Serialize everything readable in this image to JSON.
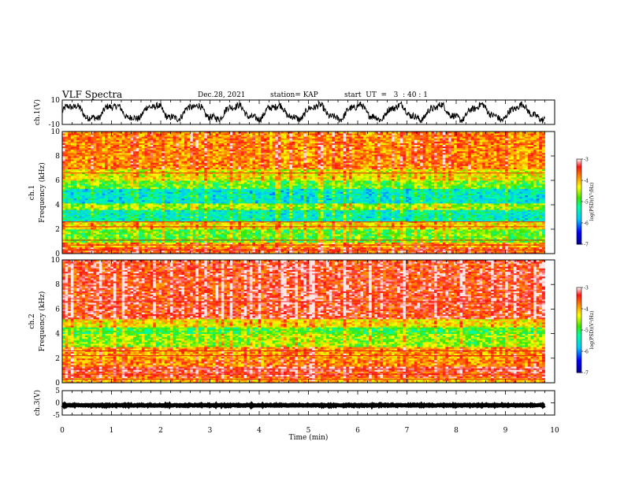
{
  "header": {
    "title": "VLF Spectra",
    "date": "Dec.28, 2021",
    "station": "station= KAP",
    "start_ut": "start  UT  =   3  : 40 : 1"
  },
  "chart_data": [
    {
      "type": "line",
      "panel": "ch1-waveform",
      "ylabel": "ch.1(V)",
      "ylim": [
        -10,
        10
      ],
      "yticks": [
        -10,
        10
      ],
      "xlim": [
        0,
        10
      ],
      "x_extent_min": 9.8,
      "description_of_signal": "oscillating voltage roughly between -8 and 8 V"
    },
    {
      "type": "heatmap",
      "panel": "ch1-spectrogram",
      "ylabel": "ch.1\nFrequency (kHz)",
      "ylim": [
        0,
        10
      ],
      "yticks": [
        0,
        2,
        4,
        6,
        8,
        10
      ],
      "xlim": [
        0,
        10
      ],
      "colorbar": {
        "label": "log(PSD)(V²/Hz)",
        "range": [
          -7,
          -3
        ],
        "ticks": [
          -3,
          -4,
          -5,
          -6,
          -7
        ]
      },
      "bands_log_psd": [
        {
          "f": [
            0.0,
            0.6
          ],
          "value": -3.6
        },
        {
          "f": [
            0.6,
            1.0
          ],
          "value": -4.0
        },
        {
          "f": [
            1.0,
            2.0
          ],
          "value": -4.8
        },
        {
          "f": [
            2.0,
            2.6
          ],
          "value": -4.2
        },
        {
          "f": [
            2.6,
            3.6
          ],
          "value": -5.4
        },
        {
          "f": [
            3.6,
            4.2
          ],
          "value": -4.6
        },
        {
          "f": [
            4.2,
            5.3
          ],
          "value": -5.5
        },
        {
          "f": [
            5.3,
            6.0
          ],
          "value": -4.8
        },
        {
          "f": [
            6.0,
            7.0
          ],
          "value": -4.3
        },
        {
          "f": [
            7.0,
            10.0
          ],
          "value": -3.8
        }
      ]
    },
    {
      "type": "heatmap",
      "panel": "ch2-spectrogram",
      "ylabel": "ch.2\nFrequency (kHz)",
      "ylim": [
        0,
        10
      ],
      "yticks": [
        0,
        2,
        4,
        6,
        8,
        10
      ],
      "xlim": [
        0,
        10
      ],
      "colorbar": {
        "label": "log(PSD)(V²/Hz)",
        "range": [
          -7,
          -3
        ],
        "ticks": [
          -3,
          -4,
          -5,
          -6,
          -7
        ]
      },
      "bands_log_psd": [
        {
          "f": [
            0.0,
            0.4
          ],
          "value": -4.0
        },
        {
          "f": [
            0.4,
            1.0
          ],
          "value": -3.5
        },
        {
          "f": [
            1.0,
            1.4
          ],
          "value": -3.3
        },
        {
          "f": [
            1.4,
            2.0
          ],
          "value": -3.8
        },
        {
          "f": [
            2.0,
            3.0
          ],
          "value": -3.9
        },
        {
          "f": [
            3.0,
            4.0
          ],
          "value": -4.6
        },
        {
          "f": [
            4.0,
            4.5
          ],
          "value": -4.9
        },
        {
          "f": [
            4.5,
            5.2
          ],
          "value": -4.2
        },
        {
          "f": [
            5.2,
            10.0
          ],
          "value": -3.4
        }
      ]
    },
    {
      "type": "line",
      "panel": "ch3-waveform",
      "ylabel": "ch.3(V)",
      "ylim": [
        -5,
        5
      ],
      "yticks": [
        -5,
        0,
        5
      ],
      "xlim": [
        0,
        10
      ],
      "xticks": [
        0,
        1,
        2,
        3,
        4,
        5,
        6,
        7,
        8,
        9,
        10
      ],
      "xlabel": "Time (min)",
      "x_extent_min": 9.8,
      "description_of_signal": "nearly constant thick line near -1 V"
    }
  ]
}
